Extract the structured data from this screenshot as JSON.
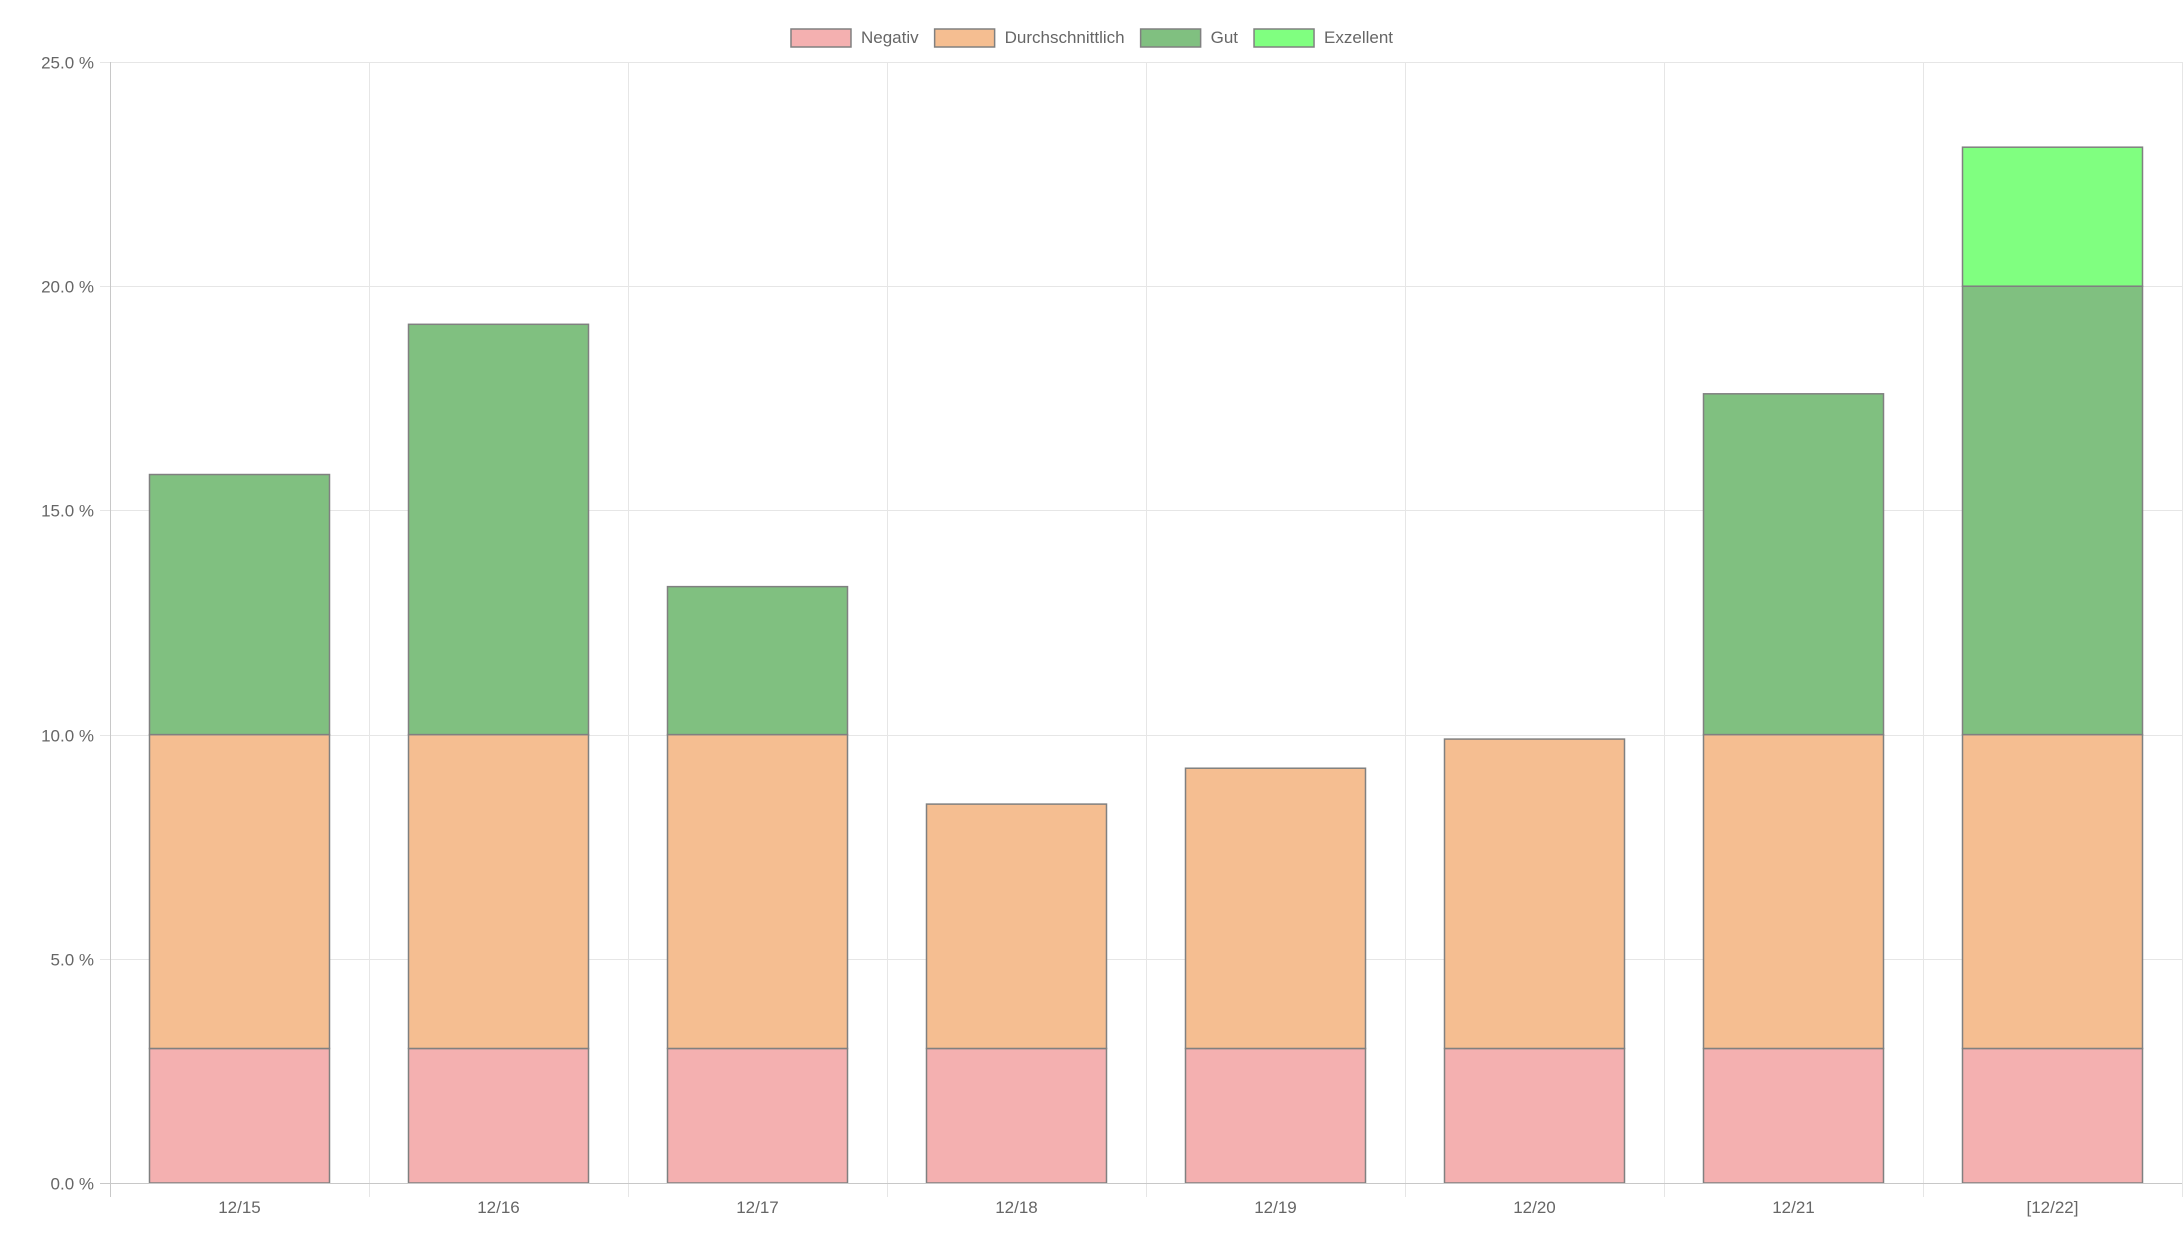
{
  "chart_data": {
    "type": "bar",
    "stacked": true,
    "categories": [
      "12/15",
      "12/16",
      "12/17",
      "12/18",
      "12/19",
      "12/20",
      "12/21",
      "[12/22]"
    ],
    "series": [
      {
        "name": "Negativ",
        "color": "#f4b0b0",
        "values": [
          3.0,
          3.0,
          3.0,
          3.0,
          3.0,
          3.0,
          3.0,
          3.0
        ]
      },
      {
        "name": "Durchschnittlich",
        "color": "#f5be91",
        "values": [
          7.0,
          7.0,
          7.0,
          5.45,
          6.25,
          6.9,
          7.0,
          7.0
        ]
      },
      {
        "name": "Gut",
        "color": "#80c080",
        "values": [
          5.8,
          9.15,
          3.3,
          0,
          0,
          0,
          7.6,
          10.0
        ]
      },
      {
        "name": "Exzellent",
        "color": "#80ff80",
        "values": [
          0,
          0,
          0,
          0,
          0,
          0,
          0,
          3.1
        ]
      }
    ],
    "ylim": [
      0,
      25
    ],
    "yticks": [
      "0.0 %",
      "5.0 %",
      "10.0 %",
      "15.0 %",
      "20.0 %",
      "25.0 %"
    ],
    "yticks_values": [
      0,
      5,
      10,
      15,
      20,
      25
    ],
    "grid": true,
    "legend_position": "top-center",
    "border_color": "#808080",
    "grid_color": "#e6e6e6"
  }
}
